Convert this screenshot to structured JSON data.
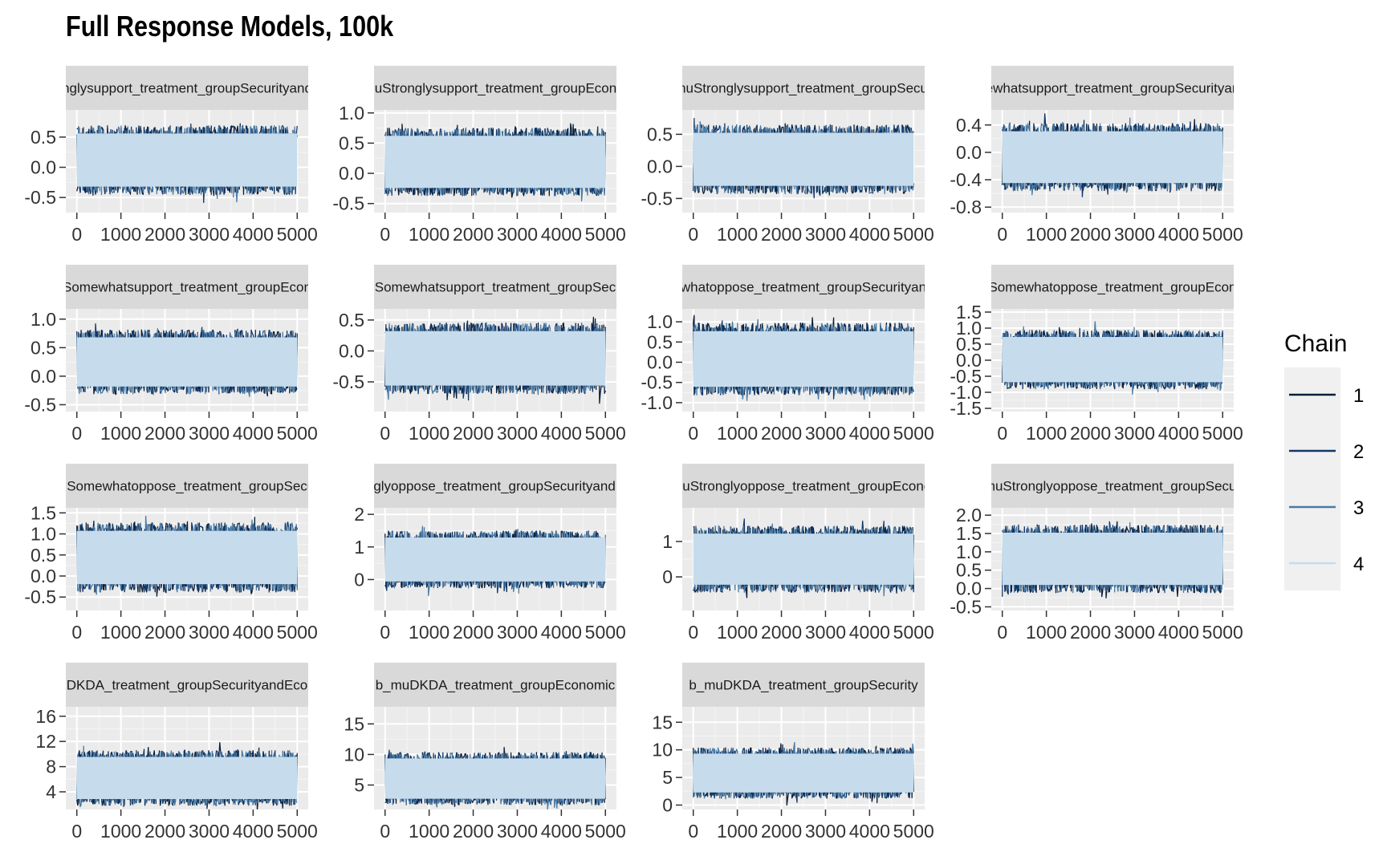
{
  "title": "Full Response Models, 100k",
  "legend": {
    "title": "Chain",
    "position": "right",
    "entries": [
      {
        "label": "1",
        "color": "#0b1f3a"
      },
      {
        "label": "2",
        "color": "#123766"
      },
      {
        "label": "3",
        "color": "#4a7ba6"
      },
      {
        "label": "4",
        "color": "#c6dcec"
      }
    ]
  },
  "chart_data": [
    {
      "type": "line",
      "panel_label": "nglysupport_treatment_groupSecurityand",
      "x_ticks": [
        0,
        1000,
        2000,
        3000,
        4000,
        5000
      ],
      "y_ticks": [
        -0.5,
        0.0,
        0.5
      ],
      "y_tick_labels": [
        "-0.5",
        "0.0",
        "0.5"
      ],
      "ylim": [
        -0.75,
        0.95
      ],
      "band": [
        -0.38,
        0.62
      ],
      "xlim": [
        -250,
        5250
      ]
    },
    {
      "type": "line",
      "panel_label": "muStronglysupport_treatment_groupEconoi",
      "x_ticks": [
        0,
        1000,
        2000,
        3000,
        4000,
        5000
      ],
      "y_ticks": [
        -0.5,
        0.0,
        0.5,
        1.0
      ],
      "y_tick_labels": [
        "-0.5",
        "0.0",
        "0.5",
        "1.0"
      ],
      "ylim": [
        -0.65,
        1.05
      ],
      "band": [
        -0.3,
        0.68
      ],
      "xlim": [
        -250,
        5250
      ]
    },
    {
      "type": "line",
      "panel_label": "muStronglysupport_treatment_groupSecur",
      "x_ticks": [
        0,
        1000,
        2000,
        3000,
        4000,
        5000
      ],
      "y_ticks": [
        -0.5,
        0.0,
        0.5
      ],
      "y_tick_labels": [
        "-0.5",
        "0.0",
        "0.5"
      ],
      "ylim": [
        -0.72,
        0.88
      ],
      "band": [
        -0.36,
        0.58
      ],
      "xlim": [
        -250,
        5250
      ]
    },
    {
      "type": "line",
      "panel_label": "ewhatsupport_treatment_groupSecurityan",
      "x_ticks": [
        0,
        1000,
        2000,
        3000,
        4000,
        5000
      ],
      "y_ticks": [
        -0.8,
        -0.4,
        0.0,
        0.4
      ],
      "y_tick_labels": [
        "-0.8",
        "-0.4",
        "0.0",
        "0.4"
      ],
      "ylim": [
        -0.88,
        0.62
      ],
      "band": [
        -0.5,
        0.36
      ],
      "xlim": [
        -250,
        5250
      ]
    },
    {
      "type": "line",
      "panel_label": "uSomewhatsupport_treatment_groupEcono",
      "x_ticks": [
        0,
        1000,
        2000,
        3000,
        4000,
        5000
      ],
      "y_ticks": [
        -0.5,
        0.0,
        0.5,
        1.0
      ],
      "y_tick_labels": [
        "-0.5",
        "0.0",
        "0.5",
        "1.0"
      ],
      "ylim": [
        -0.62,
        1.18
      ],
      "band": [
        -0.24,
        0.74
      ],
      "xlim": [
        -250,
        5250
      ]
    },
    {
      "type": "line",
      "panel_label": "uSomewhatsupport_treatment_groupSecu",
      "x_ticks": [
        0,
        1000,
        2000,
        3000,
        4000,
        5000
      ],
      "y_ticks": [
        -0.5,
        0.0,
        0.5
      ],
      "y_tick_labels": [
        "-0.5",
        "0.0",
        "0.5"
      ],
      "ylim": [
        -0.98,
        0.68
      ],
      "band": [
        -0.62,
        0.38
      ],
      "xlim": [
        -250,
        5250
      ]
    },
    {
      "type": "line",
      "panel_label": "ewhatoppose_treatment_groupSecurityand",
      "x_ticks": [
        0,
        1000,
        2000,
        3000,
        4000,
        5000
      ],
      "y_ticks": [
        -1.0,
        -0.5,
        0.0,
        0.5,
        1.0
      ],
      "y_tick_labels": [
        "-1.0",
        "-0.5",
        "0.0",
        "0.5",
        "1.0"
      ],
      "ylim": [
        -1.22,
        1.32
      ],
      "band": [
        -0.7,
        0.86
      ],
      "xlim": [
        -250,
        5250
      ]
    },
    {
      "type": "line",
      "panel_label": "uSomewhatoppose_treatment_groupEcono",
      "x_ticks": [
        0,
        1000,
        2000,
        3000,
        4000,
        5000
      ],
      "y_ticks": [
        -1.5,
        -1.0,
        -0.5,
        0.0,
        0.5,
        1.0,
        1.5
      ],
      "y_tick_labels": [
        "-1.5",
        "-1.0",
        "-0.5",
        "0.0",
        "0.5",
        "1.0",
        "1.5"
      ],
      "ylim": [
        -1.6,
        1.6
      ],
      "band": [
        -0.78,
        0.82
      ],
      "xlim": [
        -250,
        5250
      ]
    },
    {
      "type": "line",
      "panel_label": "uSomewhatoppose_treatment_groupSecu",
      "x_ticks": [
        0,
        1000,
        2000,
        3000,
        4000,
        5000
      ],
      "y_ticks": [
        -0.5,
        0.0,
        0.5,
        1.0,
        1.5
      ],
      "y_tick_labels": [
        "-0.5",
        "0.0",
        "0.5",
        "1.0",
        "1.5"
      ],
      "ylim": [
        -0.82,
        1.62
      ],
      "band": [
        -0.28,
        1.16
      ],
      "xlim": [
        -250,
        5250
      ]
    },
    {
      "type": "line",
      "panel_label": "nglyoppose_treatment_groupSecurityandE",
      "x_ticks": [
        0,
        1000,
        2000,
        3000,
        4000,
        5000
      ],
      "y_ticks": [
        0,
        1,
        2
      ],
      "y_tick_labels": [
        "0",
        "1",
        "2"
      ],
      "ylim": [
        -0.95,
        2.2
      ],
      "band": [
        -0.15,
        1.38
      ],
      "xlim": [
        -250,
        5250
      ]
    },
    {
      "type": "line",
      "panel_label": "muStronglyoppose_treatment_groupEconor",
      "x_ticks": [
        0,
        1000,
        2000,
        3000,
        4000,
        5000
      ],
      "y_ticks": [
        0,
        1
      ],
      "y_tick_labels": [
        "0",
        "1"
      ],
      "ylim": [
        -0.95,
        1.95
      ],
      "band": [
        -0.32,
        1.32
      ],
      "xlim": [
        -250,
        5250
      ]
    },
    {
      "type": "line",
      "panel_label": "muStronglyoppose_treatment_groupSecur",
      "x_ticks": [
        0,
        1000,
        2000,
        3000,
        4000,
        5000
      ],
      "y_ticks": [
        -0.5,
        0.0,
        0.5,
        1.0,
        1.5,
        2.0
      ],
      "y_tick_labels": [
        "-0.5",
        "0.0",
        "0.5",
        "1.0",
        "1.5",
        "2.0"
      ],
      "ylim": [
        -0.6,
        2.2
      ],
      "band": [
        0.0,
        1.62
      ],
      "xlim": [
        -250,
        5250
      ]
    },
    {
      "type": "line",
      "panel_label": "uDKDA_treatment_groupSecurityandEcon",
      "x_ticks": [
        0,
        1000,
        2000,
        3000,
        4000,
        5000
      ],
      "y_ticks": [
        4,
        8,
        12,
        16
      ],
      "y_tick_labels": [
        "4",
        "8",
        "12",
        "16"
      ],
      "ylim": [
        1.2,
        17.5
      ],
      "band": [
        2.4,
        10.0
      ],
      "xlim": [
        -250,
        5250
      ]
    },
    {
      "type": "line",
      "panel_label": "b_muDKDA_treatment_groupEconomic",
      "x_ticks": [
        0,
        1000,
        2000,
        3000,
        4000,
        5000
      ],
      "y_ticks": [
        5,
        10,
        15
      ],
      "y_tick_labels": [
        "5",
        "10",
        "15"
      ],
      "ylim": [
        1.0,
        17.8
      ],
      "band": [
        2.3,
        9.8
      ],
      "xlim": [
        -250,
        5250
      ]
    },
    {
      "type": "line",
      "panel_label": "b_muDKDA_treatment_groupSecurity",
      "x_ticks": [
        0,
        1000,
        2000,
        3000,
        4000,
        5000
      ],
      "y_ticks": [
        0,
        5,
        10,
        15
      ],
      "y_tick_labels": [
        "0",
        "5",
        "10",
        "15"
      ],
      "ylim": [
        -0.8,
        17.8
      ],
      "band": [
        1.8,
        9.8
      ],
      "xlim": [
        -250,
        5250
      ]
    }
  ]
}
